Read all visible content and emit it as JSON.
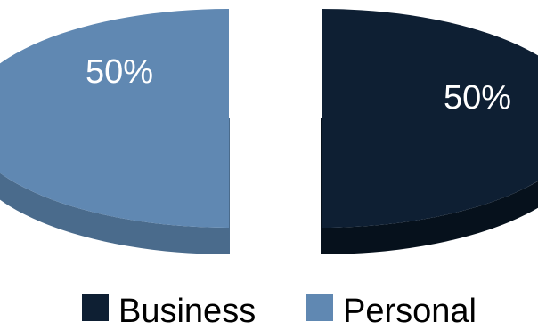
{
  "chart_data": {
    "type": "pie",
    "style": "3d-exploded",
    "categories": [
      "Business",
      "Personal"
    ],
    "values": [
      50,
      50
    ],
    "data_labels": [
      "50%",
      "50%"
    ],
    "colors": {
      "Business": "#0e1f33",
      "Personal": "#6088b2"
    },
    "side_colors": {
      "Business": "#06111c",
      "Personal": "#4a6b8c"
    },
    "legend": {
      "placement": "bottom",
      "entries": [
        "Business",
        "Personal"
      ]
    }
  }
}
